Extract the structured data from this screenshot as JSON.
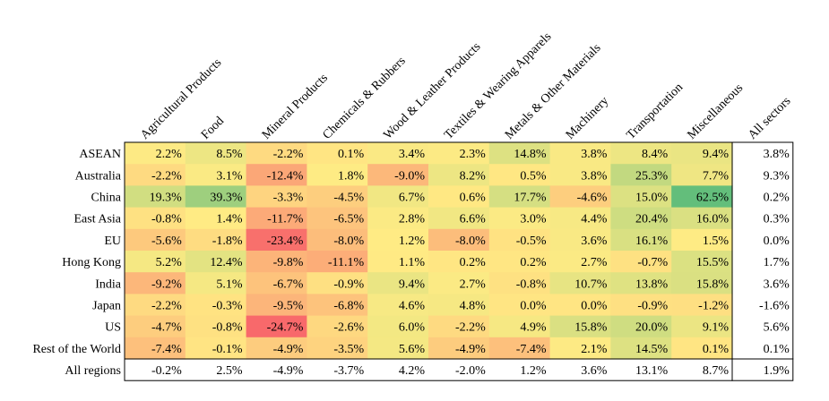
{
  "chart_data": {
    "type": "heatmap",
    "columns": [
      "Agricultural Products",
      "Food",
      "Mineral Products",
      "Chemicals & Rubbers",
      "Wood & Leather Products",
      "Textiles & Wearing Apparels",
      "Metals & Other Materials",
      "Machinery",
      "Transportation",
      "Miscellaneous",
      "All sectors"
    ],
    "rows": [
      "ASEAN",
      "Australia",
      "China",
      "East Asia",
      "EU",
      "Hong Kong",
      "India",
      "Japan",
      "US",
      "Rest of the World",
      "All regions"
    ],
    "values": [
      [
        2.2,
        8.5,
        -2.2,
        0.1,
        3.4,
        2.3,
        14.8,
        3.8,
        8.4,
        9.4,
        3.8
      ],
      [
        -2.2,
        3.1,
        -12.4,
        1.8,
        -9.0,
        8.2,
        0.5,
        3.8,
        25.3,
        7.7,
        9.3
      ],
      [
        19.3,
        39.3,
        -3.3,
        -4.5,
        6.7,
        0.6,
        17.7,
        -4.6,
        15.0,
        62.5,
        0.2
      ],
      [
        -0.8,
        1.4,
        -11.7,
        -6.5,
        2.8,
        6.6,
        3.0,
        4.4,
        20.4,
        16.0,
        0.3
      ],
      [
        -5.6,
        -1.8,
        -23.4,
        -8.0,
        1.2,
        -8.0,
        -0.5,
        3.6,
        16.1,
        1.5,
        0.0
      ],
      [
        5.2,
        12.4,
        -9.8,
        -11.1,
        1.1,
        0.2,
        0.2,
        2.7,
        -0.7,
        15.5,
        1.7
      ],
      [
        -9.2,
        5.1,
        -6.7,
        -0.9,
        9.4,
        2.7,
        -0.8,
        10.7,
        13.8,
        15.8,
        3.6
      ],
      [
        -2.2,
        -0.3,
        -9.5,
        -6.8,
        4.6,
        4.8,
        0.0,
        0.0,
        -0.9,
        -1.2,
        -1.6
      ],
      [
        -4.7,
        -0.8,
        -24.7,
        -2.6,
        6.0,
        -2.2,
        4.9,
        15.8,
        20.0,
        9.1,
        5.6
      ],
      [
        -7.4,
        -0.1,
        -4.9,
        -3.5,
        5.6,
        -4.9,
        -7.4,
        2.1,
        14.5,
        0.1,
        0.1
      ],
      [
        -0.2,
        2.5,
        -4.9,
        -3.7,
        4.2,
        -2.0,
        1.2,
        3.6,
        13.1,
        8.7,
        1.9
      ]
    ],
    "unit": "%",
    "shaded_rows": 10,
    "shaded_columns": 10,
    "color_scale": {
      "min_color": "#f8696b",
      "mid_color": "#ffeb84",
      "max_color": "#63be7b"
    }
  }
}
